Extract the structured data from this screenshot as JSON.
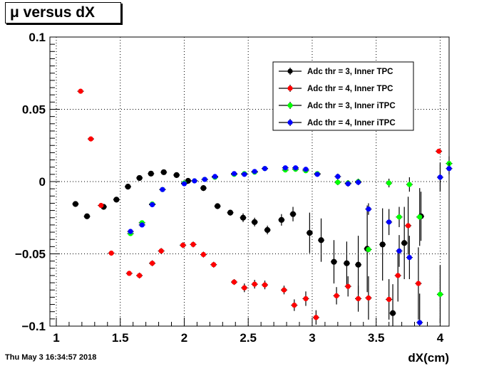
{
  "title": "μ versus dX",
  "timestamp": "Thu May  3 16:34:57 2018",
  "colors": {
    "inner_tpc_thr3": "#000000",
    "inner_tpc_thr4": "#ff0000",
    "inner_itpc_thr3": "#00ff00",
    "inner_itpc_thr4": "#0000ff"
  },
  "chart_data": {
    "type": "scatter",
    "title": "μ versus dX",
    "xlabel": "dX(cm)",
    "ylabel": "",
    "xlim": [
      0.95,
      4.07
    ],
    "ylim": [
      -0.1,
      0.1
    ],
    "x_ticks": [
      {
        "value": 1,
        "label": "1"
      },
      {
        "value": 1.5,
        "label": "1.5"
      },
      {
        "value": 2,
        "label": "2"
      },
      {
        "value": 2.5,
        "label": "2.5"
      },
      {
        "value": 3,
        "label": "3"
      },
      {
        "value": 3.5,
        "label": "3.5"
      },
      {
        "value": 4,
        "label": "4"
      }
    ],
    "y_ticks": [
      {
        "value": 0.1,
        "label": "0.1"
      },
      {
        "value": 0.05,
        "label": "0.05"
      },
      {
        "value": 0,
        "label": "0"
      },
      {
        "value": -0.05,
        "label": "−0.05"
      },
      {
        "value": -0.1,
        "label": "−0.1"
      }
    ],
    "grid": true,
    "legend_position": "top-right",
    "x_error": 0.025,
    "series": [
      {
        "name": "Adc thr = 3, Inner TPC",
        "color_key": "inner_tpc_thr3",
        "points": [
          [
            1.15,
            -0.0155,
            0.001
          ],
          [
            1.24,
            -0.024,
            0.001
          ],
          [
            1.37,
            -0.0175,
            0.001
          ],
          [
            1.47,
            -0.0125,
            0.001
          ],
          [
            1.56,
            -0.0035,
            0.001
          ],
          [
            1.65,
            0.0025,
            0.001
          ],
          [
            1.74,
            0.0055,
            0.001
          ],
          [
            1.84,
            0.0065,
            0.001
          ],
          [
            1.94,
            0.0045,
            0.001
          ],
          [
            2.03,
            0.0005,
            0.002
          ],
          [
            2.15,
            -0.0045,
            0.002
          ],
          [
            2.26,
            -0.017,
            0.002
          ],
          [
            2.36,
            -0.0215,
            0.002
          ],
          [
            2.46,
            -0.025,
            0.003
          ],
          [
            2.55,
            -0.028,
            0.003
          ],
          [
            2.65,
            -0.0335,
            0.003
          ],
          [
            2.76,
            -0.0265,
            0.004
          ],
          [
            2.85,
            -0.0225,
            0.005
          ],
          [
            2.98,
            -0.0355,
            0.014
          ],
          [
            3.07,
            -0.0405,
            0.015
          ],
          [
            3.17,
            -0.0555,
            0.015
          ],
          [
            3.27,
            -0.0565,
            0.015
          ],
          [
            3.36,
            -0.0575,
            0.02
          ],
          [
            3.43,
            -0.0465,
            0.03
          ],
          [
            3.55,
            -0.0435,
            0.025
          ],
          [
            3.63,
            -0.091,
            0.02
          ],
          [
            3.72,
            -0.0425,
            0.025
          ],
          [
            3.85,
            -0.024,
            0.017
          ]
        ]
      },
      {
        "name": "Adc thr = 4, Inner TPC",
        "color_key": "inner_tpc_thr4",
        "points": [
          [
            1.19,
            0.0625,
            0.001
          ],
          [
            1.27,
            0.0295,
            0.001
          ],
          [
            1.35,
            -0.0165,
            0.001
          ],
          [
            1.43,
            -0.0495,
            0.001
          ],
          [
            1.57,
            -0.0635,
            0.001
          ],
          [
            1.65,
            -0.065,
            0.002
          ],
          [
            1.75,
            -0.0565,
            0.002
          ],
          [
            1.82,
            -0.048,
            0.002
          ],
          [
            1.99,
            -0.044,
            0.002
          ],
          [
            2.07,
            -0.0435,
            0.002
          ],
          [
            2.15,
            -0.0505,
            0.002
          ],
          [
            2.23,
            -0.0575,
            0.002
          ],
          [
            2.39,
            -0.0695,
            0.002
          ],
          [
            2.47,
            -0.0735,
            0.003
          ],
          [
            2.55,
            -0.071,
            0.003
          ],
          [
            2.63,
            -0.0715,
            0.003
          ],
          [
            2.78,
            -0.075,
            0.003
          ],
          [
            2.86,
            -0.0855,
            0.004
          ],
          [
            2.95,
            -0.081,
            0.005
          ],
          [
            3.03,
            -0.094,
            0.005
          ],
          [
            3.19,
            -0.079,
            0.006
          ],
          [
            3.28,
            -0.0725,
            0.007
          ],
          [
            3.36,
            -0.081,
            0.009
          ],
          [
            3.44,
            -0.0805,
            0.015
          ],
          [
            3.6,
            -0.0815,
            0.014
          ],
          [
            3.67,
            -0.065,
            0.018
          ],
          [
            3.75,
            -0.0305,
            0.02
          ],
          [
            3.83,
            -0.0705,
            0.025
          ],
          [
            3.99,
            0.021,
            0.001
          ]
        ]
      },
      {
        "name": "Adc thr = 3, Inner iTPC",
        "color_key": "inner_itpc_thr3",
        "points": [
          [
            1.58,
            -0.036,
            0.001
          ],
          [
            1.67,
            -0.0285,
            0.001
          ],
          [
            1.75,
            -0.0155,
            0.001
          ],
          [
            1.83,
            -0.0055,
            0.001
          ],
          [
            2.0,
            -0.001,
            0.001
          ],
          [
            2.08,
            0.0005,
            0.001
          ],
          [
            2.16,
            0.0015,
            0.001
          ],
          [
            2.24,
            0.003,
            0.001
          ],
          [
            2.39,
            0.005,
            0.001
          ],
          [
            2.47,
            0.0055,
            0.001
          ],
          [
            2.55,
            0.0065,
            0.001
          ],
          [
            2.63,
            0.009,
            0.001
          ],
          [
            2.79,
            0.008,
            0.001
          ],
          [
            2.87,
            0.0085,
            0.001
          ],
          [
            2.95,
            0.0075,
            0.001
          ],
          [
            3.04,
            0.0055,
            0.001
          ],
          [
            3.2,
            -0.0005,
            0.002
          ],
          [
            3.28,
            -0.001,
            0.002
          ],
          [
            3.36,
            0.0,
            0.002
          ],
          [
            3.44,
            -0.047,
            0.002
          ],
          [
            3.6,
            -0.001,
            0.003
          ],
          [
            3.68,
            -0.0245,
            0.007
          ],
          [
            3.76,
            -0.002,
            0.005
          ],
          [
            3.84,
            -0.0245,
            0.02
          ],
          [
            4.0,
            -0.078,
            0.02
          ],
          [
            4.07,
            0.0125,
            0.005
          ]
        ]
      },
      {
        "name": "Adc thr = 4, Inner iTPC",
        "color_key": "inner_itpc_thr4",
        "points": [
          [
            1.58,
            -0.0345,
            0.001
          ],
          [
            1.67,
            -0.03,
            0.001
          ],
          [
            1.75,
            -0.016,
            0.001
          ],
          [
            1.83,
            -0.0055,
            0.001
          ],
          [
            2.0,
            -0.0015,
            0.001
          ],
          [
            2.08,
            0.0005,
            0.001
          ],
          [
            2.16,
            0.0015,
            0.001
          ],
          [
            2.24,
            0.0035,
            0.001
          ],
          [
            2.39,
            0.0055,
            0.001
          ],
          [
            2.47,
            0.005,
            0.001
          ],
          [
            2.55,
            0.007,
            0.001
          ],
          [
            2.63,
            0.009,
            0.001
          ],
          [
            2.79,
            0.0095,
            0.001
          ],
          [
            2.87,
            0.0095,
            0.001
          ],
          [
            2.95,
            0.0085,
            0.001
          ],
          [
            3.04,
            0.005,
            0.001
          ],
          [
            3.2,
            0.0035,
            0.002
          ],
          [
            3.28,
            -0.0015,
            0.002
          ],
          [
            3.36,
            -0.0005,
            0.002
          ],
          [
            3.44,
            -0.019,
            0.004
          ],
          [
            3.6,
            -0.028,
            0.009
          ],
          [
            3.68,
            -0.048,
            0.011
          ],
          [
            3.76,
            -0.0525,
            0.015
          ],
          [
            3.84,
            -0.0975,
            0.02
          ],
          [
            4.0,
            0.003,
            0.01
          ],
          [
            4.07,
            0.009,
            0.004
          ]
        ]
      }
    ]
  }
}
